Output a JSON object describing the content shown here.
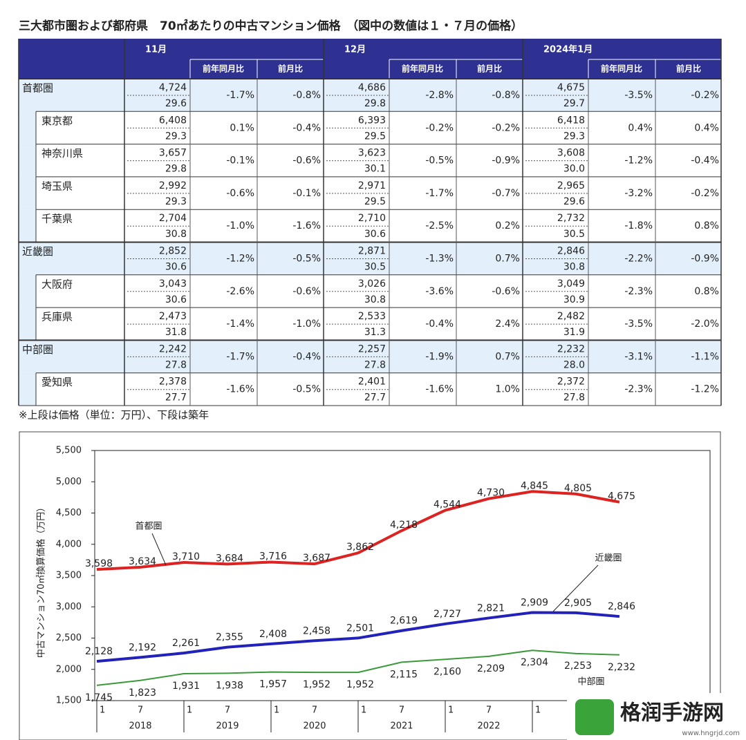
{
  "title": "三大都市圏および都府県　70㎡あたりの中古マンション価格　（図中の数値は１・７月の価格）",
  "header": {
    "groups": [
      {
        "month": "11月",
        "sub": [
          "前年同月比",
          "前月比"
        ]
      },
      {
        "month": "12月",
        "sub": [
          "前年同月比",
          "前月比"
        ]
      },
      {
        "month": "2024年1月",
        "sub": [
          "前年同月比",
          "前月比"
        ]
      }
    ]
  },
  "table": {
    "regions": [
      {
        "name": "首都圏",
        "cells": [
          [
            "4,724",
            "29.6",
            "-1.7%",
            "-0.8%"
          ],
          [
            "4,686",
            "29.8",
            "-2.8%",
            "-0.8%"
          ],
          [
            "4,675",
            "29.7",
            "-3.5%",
            "-0.2%"
          ]
        ],
        "prefectures": [
          {
            "name": "東京都",
            "cells": [
              [
                "6,408",
                "29.3",
                "0.1%",
                "-0.4%"
              ],
              [
                "6,393",
                "29.5",
                "-0.2%",
                "-0.2%"
              ],
              [
                "6,418",
                "29.3",
                "0.4%",
                "0.4%"
              ]
            ]
          },
          {
            "name": "神奈川県",
            "cells": [
              [
                "3,657",
                "29.8",
                "-0.1%",
                "-0.6%"
              ],
              [
                "3,623",
                "30.1",
                "-0.5%",
                "-0.9%"
              ],
              [
                "3,608",
                "30.0",
                "-1.2%",
                "-0.4%"
              ]
            ]
          },
          {
            "name": "埼玉県",
            "cells": [
              [
                "2,992",
                "29.3",
                "-0.6%",
                "-0.1%"
              ],
              [
                "2,971",
                "29.5",
                "-1.7%",
                "-0.7%"
              ],
              [
                "2,965",
                "29.6",
                "-3.2%",
                "-0.2%"
              ]
            ]
          },
          {
            "name": "千葉県",
            "cells": [
              [
                "2,704",
                "30.8",
                "-1.0%",
                "-1.6%"
              ],
              [
                "2,710",
                "30.6",
                "-2.5%",
                "0.2%"
              ],
              [
                "2,732",
                "30.5",
                "-1.8%",
                "0.8%"
              ]
            ]
          }
        ]
      },
      {
        "name": "近畿圏",
        "cells": [
          [
            "2,852",
            "30.6",
            "-1.2%",
            "-0.5%"
          ],
          [
            "2,871",
            "30.5",
            "-1.3%",
            "0.7%"
          ],
          [
            "2,846",
            "30.8",
            "-2.2%",
            "-0.9%"
          ]
        ],
        "prefectures": [
          {
            "name": "大阪府",
            "cells": [
              [
                "3,043",
                "30.6",
                "-2.6%",
                "-0.6%"
              ],
              [
                "3,026",
                "30.8",
                "-3.6%",
                "-0.6%"
              ],
              [
                "3,049",
                "30.9",
                "-2.3%",
                "0.8%"
              ]
            ]
          },
          {
            "name": "兵庫県",
            "cells": [
              [
                "2,473",
                "31.8",
                "-1.4%",
                "-1.0%"
              ],
              [
                "2,533",
                "31.3",
                "-0.4%",
                "2.4%"
              ],
              [
                "2,482",
                "31.9",
                "-3.5%",
                "-2.0%"
              ]
            ]
          }
        ]
      },
      {
        "name": "中部圏",
        "cells": [
          [
            "2,242",
            "27.8",
            "-1.7%",
            "-0.4%"
          ],
          [
            "2,257",
            "27.8",
            "-1.9%",
            "0.7%"
          ],
          [
            "2,232",
            "28.0",
            "-3.1%",
            "-1.1%"
          ]
        ],
        "prefectures": [
          {
            "name": "愛知県",
            "cells": [
              [
                "2,378",
                "27.7",
                "-1.6%",
                "-0.5%"
              ],
              [
                "2,401",
                "27.7",
                "-1.6%",
                "1.0%"
              ],
              [
                "2,372",
                "27.8",
                "-2.3%",
                "-1.2%"
              ]
            ]
          }
        ]
      }
    ]
  },
  "note": "※上段は価格（単位：万円）、下段は築年",
  "chart_data": {
    "type": "line",
    "y_label": "中古マンション70㎡換算価格（万円）",
    "categories": [
      "1",
      "7",
      "1",
      "7",
      "1",
      "7",
      "1",
      "7",
      "1",
      "7",
      "1",
      null,
      null
    ],
    "years": [
      "2018",
      "2019",
      "2020",
      "2021",
      "2022"
    ],
    "ylim": [
      1500,
      5500
    ],
    "yticks": [
      {
        "value": 1500,
        "label": "1,500"
      },
      {
        "value": 2000,
        "label": "2,000"
      },
      {
        "value": 2500,
        "label": "2,500"
      },
      {
        "value": 3000,
        "label": "3,000"
      },
      {
        "value": 3500,
        "label": "3,500"
      },
      {
        "value": 4000,
        "label": "4,000"
      },
      {
        "value": 4500,
        "label": "4,500"
      },
      {
        "value": 5000,
        "label": "5,000"
      },
      {
        "value": 5500,
        "label": "5,500"
      }
    ],
    "grid": false,
    "series": [
      {
        "name": "首都圏",
        "color": "#dd2222",
        "values": [
          3598,
          3634,
          3710,
          3684,
          3716,
          3687,
          3862,
          4218,
          4544,
          4730,
          4845,
          4805,
          4675
        ],
        "value_labels": [
          "3,598",
          "3,634",
          "3,710",
          "3,684",
          "3,716",
          "3,687",
          "3,862",
          "4,218",
          "4,544",
          "4,730",
          "4,845",
          "4,805",
          "4,675"
        ]
      },
      {
        "name": "近畿圏",
        "color": "#2222bb",
        "values": [
          2128,
          2192,
          2261,
          2355,
          2408,
          2458,
          2501,
          2619,
          2727,
          2821,
          2909,
          2905,
          2846
        ],
        "value_labels": [
          "2,128",
          "2,192",
          "2,261",
          "2,355",
          "2,408",
          "2,458",
          "2,501",
          "2,619",
          "2,727",
          "2,821",
          "2,909",
          "2,905",
          "2,846"
        ]
      },
      {
        "name": "中部圏",
        "color": "#3a9a3a",
        "values": [
          1745,
          1823,
          1931,
          1938,
          1957,
          1952,
          1952,
          2115,
          2160,
          2209,
          2304,
          2253,
          2232
        ],
        "value_labels": [
          "1,745",
          "1,823",
          "1,931",
          "1,938",
          "1,957",
          "1,952",
          "1,952",
          "2,115",
          "2,160",
          "2,209",
          "2,304",
          "2,253",
          "2,232"
        ]
      }
    ]
  },
  "watermark": {
    "name": "格润手游网",
    "url": "www.hngrjd.com"
  }
}
